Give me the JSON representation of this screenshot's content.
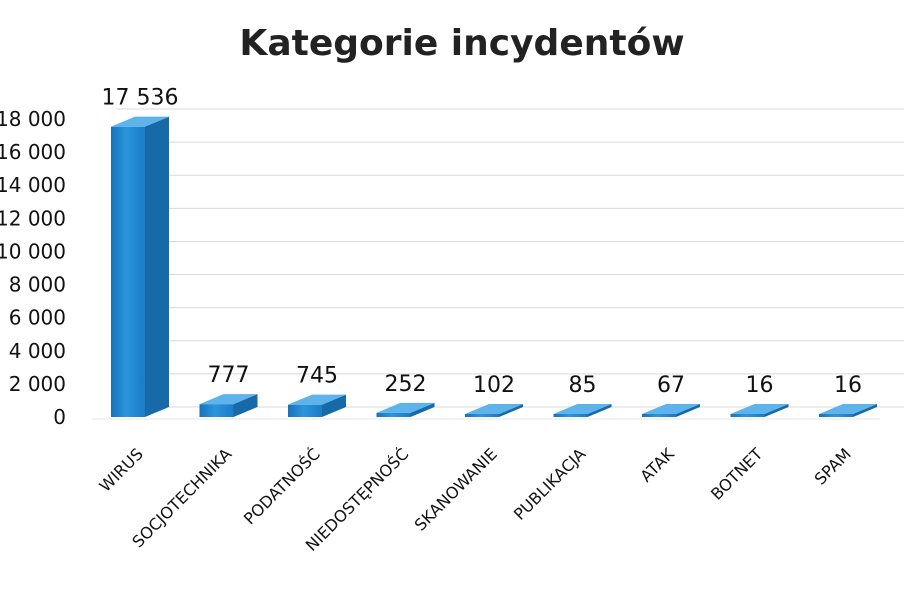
{
  "chart_data": {
    "type": "bar",
    "title": "Kategorie incydentów",
    "categories": [
      "WIRUS",
      "SOCJOTECHNIKA",
      "PODATNOŚĆ",
      "NIEDOSTĘPNOŚĆ",
      "SKANOWANIE",
      "PUBLIKACJA",
      "ATAK",
      "BOTNET",
      "SPAM"
    ],
    "values": [
      17536,
      777,
      745,
      252,
      102,
      85,
      67,
      16,
      16
    ],
    "value_labels": [
      "17 536",
      "777",
      "745",
      "252",
      "102",
      "85",
      "67",
      "16",
      "16"
    ],
    "y_ticks": [
      0,
      2000,
      4000,
      6000,
      8000,
      10000,
      12000,
      14000,
      16000,
      18000
    ],
    "y_tick_labels": [
      "0",
      "2 000",
      "4 000",
      "6 000",
      "8 000",
      "10 000",
      "12 000",
      "14 000",
      "16 000",
      "18 000"
    ],
    "ylim": [
      0,
      18000
    ],
    "xlabel": "",
    "ylabel": "",
    "grid": true,
    "legend": "none",
    "style": "3d",
    "colors": {
      "bar_front": "#1f86cf",
      "bar_top": "#5db3ea",
      "bar_side": "#166aa8",
      "grid": "#d9d9d9"
    }
  }
}
